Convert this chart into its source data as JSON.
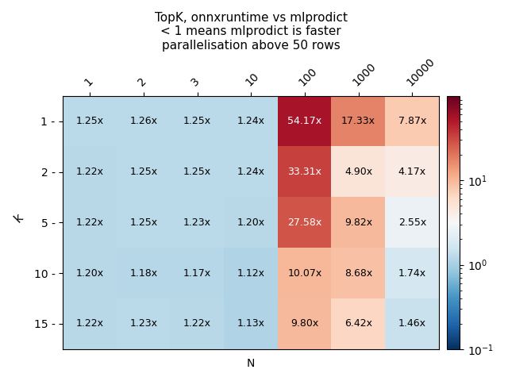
{
  "title": "TopK, onnxruntime vs mlprodict\n< 1 means mlprodict is faster\nparallelisation above 50 rows",
  "xlabel": "N",
  "ylabel": "k",
  "x_labels": [
    "1",
    "2",
    "3",
    "10",
    "100",
    "1000",
    "10000"
  ],
  "y_labels": [
    "1",
    "2",
    "5",
    "10",
    "15"
  ],
  "values": [
    [
      1.25,
      1.26,
      1.25,
      1.24,
      54.17,
      17.33,
      7.87
    ],
    [
      1.22,
      1.25,
      1.25,
      1.24,
      33.31,
      4.9,
      4.17
    ],
    [
      1.22,
      1.25,
      1.23,
      1.2,
      27.58,
      9.82,
      2.55
    ],
    [
      1.2,
      1.18,
      1.17,
      1.12,
      10.07,
      8.68,
      1.74
    ],
    [
      1.22,
      1.23,
      1.22,
      1.13,
      9.8,
      6.42,
      1.46
    ]
  ],
  "vmin": 0.1,
  "vmax": 100,
  "cmap": "RdBu_r",
  "colorbar_ticks": [
    0.1,
    1.0,
    10.0
  ],
  "colorbar_ticklabels": [
    "$10^{-1}$",
    "$10^{0}$",
    "$10^{1}$"
  ],
  "figsize": [
    6.4,
    4.8
  ],
  "dpi": 100
}
